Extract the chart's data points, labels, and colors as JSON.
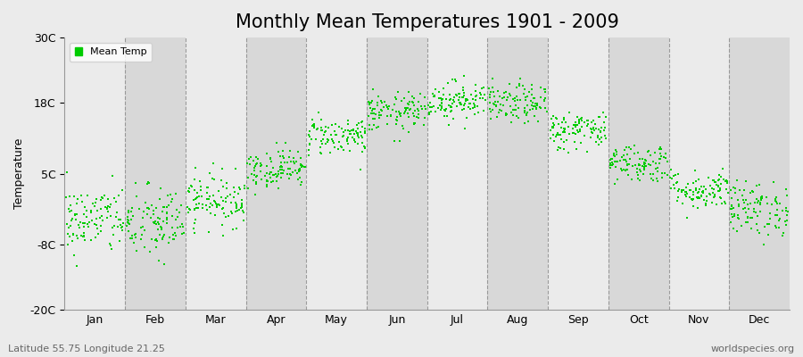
{
  "title": "Monthly Mean Temperatures 1901 - 2009",
  "ylabel": "Temperature",
  "subtitle_left": "Latitude 55.75 Longitude 21.25",
  "subtitle_right": "worldspecies.org",
  "ylim": [
    -20,
    30
  ],
  "yticks": [
    -20,
    -8,
    5,
    18,
    30
  ],
  "ytick_labels": [
    "-20C",
    "-8C",
    "5C",
    "18C",
    "30C"
  ],
  "month_labels": [
    "Jan",
    "Feb",
    "Mar",
    "Apr",
    "May",
    "Jun",
    "Jul",
    "Aug",
    "Sep",
    "Oct",
    "Nov",
    "Dec"
  ],
  "dot_color": "#00cc00",
  "bg_light": "#ebebeb",
  "bg_dark": "#d8d8d8",
  "legend_label": "Mean Temp",
  "title_fontsize": 15,
  "label_fontsize": 9,
  "tick_fontsize": 9,
  "random_seed": 42,
  "mean_temps": [
    -3.5,
    -4.2,
    0.2,
    6.0,
    12.0,
    16.2,
    18.5,
    17.8,
    13.0,
    7.0,
    2.0,
    -1.5
  ],
  "std_temps": [
    3.2,
    3.5,
    2.4,
    1.8,
    1.8,
    1.8,
    1.8,
    1.8,
    1.8,
    1.8,
    1.8,
    2.5
  ],
  "n_years": 109,
  "dot_size": 3
}
